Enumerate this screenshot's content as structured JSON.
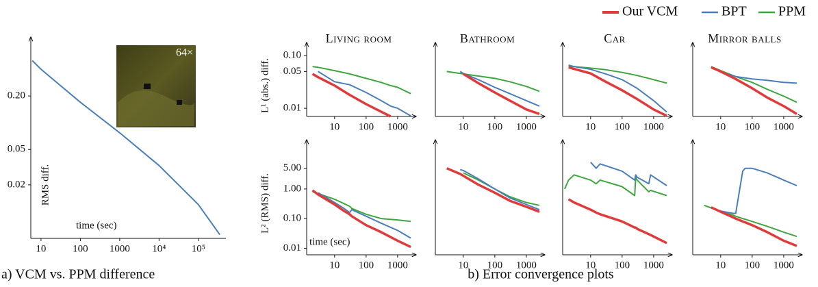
{
  "chart_data": [
    {
      "type": "line",
      "x_label": "time (sec)",
      "y_label": "RMS diff.",
      "inset_label": "64×",
      "caption": "a) VCM vs. PPM difference",
      "xscale": "log",
      "yscale": "log",
      "xlim": [
        5.5,
        500000
      ],
      "ylim": [
        0.005,
        0.8
      ],
      "xticks": [
        10,
        100,
        1000,
        {
          "value": 10000,
          "label": "10⁴"
        },
        {
          "value": 100000,
          "label": "10⁵"
        }
      ],
      "yticks": [
        {
          "value": 0.2,
          "label": "0.20"
        },
        0.05,
        0.02
      ],
      "x": [
        6,
        10,
        100,
        1000,
        10000,
        100000,
        350000
      ],
      "color": "#4a7ebb",
      "values": [
        0.5,
        0.4,
        0.17,
        0.077,
        0.033,
        0.012,
        0.0055
      ]
    },
    {
      "type": "line",
      "title": "Living room",
      "y_label": "L¹ (abs.) diff.",
      "caption": "b) Error convergence plots",
      "xscale": "log",
      "yscale": "log",
      "xlim": [
        1.3,
        2600
      ],
      "ylim": [
        0.007,
        0.14
      ],
      "xticks": [
        10,
        100,
        1000
      ],
      "yticks": [
        {
          "value": 0.1,
          "label": "0.10"
        },
        0.05,
        0.01
      ],
      "x": [
        2,
        3,
        10,
        30,
        100,
        300,
        600,
        1000,
        2600
      ],
      "series": [
        {
          "name": "Our VCM",
          "color": "#e03a3a",
          "values": [
            0.045,
            0.039,
            0.027,
            0.018,
            0.012,
            0.0086,
            0.007,
            null,
            null
          ]
        },
        {
          "name": "BPT",
          "color": "#4a7ebb",
          "values": [
            null,
            0.05,
            0.032,
            0.028,
            0.02,
            0.014,
            0.011,
            0.01,
            0.0072
          ]
        },
        {
          "name": "PPM",
          "color": "#3fa63f",
          "values": [
            0.062,
            0.06,
            0.052,
            0.045,
            0.037,
            0.031,
            0.027,
            0.025,
            0.019
          ]
        }
      ]
    },
    {
      "type": "line",
      "title": "Bathroom",
      "xscale": "log",
      "yscale": "log",
      "xlim": [
        1.3,
        2600
      ],
      "ylim": [
        0.007,
        0.14
      ],
      "xticks": [
        10,
        100,
        1000
      ],
      "x": [
        3,
        8,
        10,
        30,
        100,
        300,
        1000,
        2600
      ],
      "series": [
        {
          "color": "#e03a3a",
          "values": [
            null,
            null,
            0.045,
            0.03,
            0.02,
            0.014,
            0.0095,
            0.0078
          ]
        },
        {
          "color": "#4a7ebb",
          "values": [
            null,
            0.05,
            0.046,
            0.035,
            0.025,
            0.019,
            0.014,
            0.011
          ]
        },
        {
          "color": "#3fa63f",
          "values": [
            0.05,
            0.046,
            0.045,
            0.041,
            0.037,
            0.032,
            0.026,
            0.021
          ]
        }
      ]
    },
    {
      "type": "line",
      "title": "Car",
      "xscale": "log",
      "yscale": "log",
      "xlim": [
        1.3,
        2600
      ],
      "ylim": [
        0.007,
        0.14
      ],
      "xticks": [
        10,
        100,
        1000
      ],
      "x": [
        2,
        3,
        10,
        30,
        100,
        300,
        1000,
        2600
      ],
      "series": [
        {
          "color": "#e03a3a",
          "values": [
            0.06,
            0.056,
            0.046,
            0.032,
            0.022,
            0.015,
            0.0095,
            0.0072
          ]
        },
        {
          "color": "#4a7ebb",
          "values": [
            0.066,
            0.062,
            0.055,
            0.045,
            0.035,
            0.024,
            0.014,
            0.0085
          ]
        },
        {
          "color": "#3fa63f",
          "values": [
            0.063,
            0.062,
            0.058,
            0.054,
            0.048,
            0.042,
            0.035,
            0.03
          ]
        }
      ]
    },
    {
      "type": "line",
      "title": "Mirror balls",
      "xscale": "log",
      "yscale": "log",
      "xlim": [
        1.3,
        2600
      ],
      "ylim": [
        0.007,
        0.14
      ],
      "xticks": [
        10,
        100,
        1000
      ],
      "x": [
        5,
        10,
        30,
        100,
        300,
        1000,
        2600
      ],
      "series": [
        {
          "color": "#e03a3a",
          "values": [
            0.06,
            0.05,
            0.036,
            0.024,
            0.016,
            0.011,
            0.0078
          ]
        },
        {
          "color": "#4a7ebb",
          "values": [
            0.06,
            0.05,
            0.04,
            0.036,
            0.034,
            0.031,
            0.03
          ]
        },
        {
          "color": "#3fa63f",
          "values": [
            0.062,
            0.052,
            0.04,
            0.031,
            0.023,
            0.017,
            0.013
          ]
        }
      ]
    },
    {
      "type": "line",
      "y_label": "L² (RMS) diff.",
      "x_label": "time (sec)",
      "xscale": "log",
      "yscale": "log",
      "xlim": [
        1.3,
        2600
      ],
      "ylim": [
        0.006,
        30
      ],
      "xticks": [
        10,
        100,
        1000
      ],
      "yticks": [
        {
          "value": 5,
          "label": "5.00"
        },
        {
          "value": 1,
          "label": "1.00"
        },
        {
          "value": 0.1,
          "label": "0.10"
        },
        0.01
      ],
      "x": [
        2,
        3,
        10,
        20,
        30,
        35,
        100,
        300,
        1000,
        2600
      ],
      "series": [
        {
          "color": "#e03a3a",
          "values": [
            0.9,
            0.65,
            0.3,
            0.18,
            0.14,
            0.12,
            0.06,
            0.035,
            0.018,
            0.011
          ]
        },
        {
          "color": "#4a7ebb",
          "values": [
            null,
            0.75,
            0.35,
            0.22,
            0.16,
            0.2,
            0.12,
            0.07,
            0.04,
            0.022
          ]
        },
        {
          "color": "#3fa63f",
          "values": [
            0.8,
            0.7,
            0.45,
            0.32,
            0.26,
            0.22,
            0.14,
            0.1,
            0.09,
            0.08
          ]
        }
      ]
    },
    {
      "type": "line",
      "xscale": "log",
      "yscale": "log",
      "xlim": [
        1.3,
        2600
      ],
      "ylim": [
        0.006,
        30
      ],
      "xticks": [
        10,
        100,
        1000
      ],
      "x": [
        3,
        8,
        10,
        30,
        100,
        300,
        1000,
        2600
      ],
      "series": [
        {
          "color": "#e03a3a",
          "values": [
            5,
            3.2,
            2.8,
            1.4,
            0.75,
            0.4,
            0.25,
            0.17
          ]
        },
        {
          "color": "#4a7ebb",
          "values": [
            null,
            4.5,
            4.2,
            2.2,
            1.0,
            0.5,
            0.3,
            0.2
          ]
        },
        {
          "color": "#3fa63f",
          "values": [
            null,
            null,
            3.5,
            2.0,
            1.0,
            0.55,
            0.35,
            0.28
          ]
        }
      ]
    },
    {
      "type": "line",
      "xscale": "log",
      "yscale": "log",
      "xlim": [
        1.3,
        2600
      ],
      "ylim": [
        0.006,
        30
      ],
      "xticks": [
        10,
        100,
        1000
      ],
      "x": [
        1.5,
        2,
        3,
        10,
        15,
        20,
        100,
        250,
        270,
        300,
        700,
        800,
        2600
      ],
      "series": [
        {
          "color": "#e03a3a",
          "values": [
            null,
            0.45,
            0.35,
            0.2,
            0.16,
            0.14,
            0.08,
            0.05,
            0.05,
            0.045,
            0.03,
            0.028,
            0.015
          ]
        },
        {
          "color": "#4a7ebb",
          "values": [
            null,
            null,
            null,
            8,
            5,
            7,
            4,
            2,
            3,
            2.5,
            1.5,
            3,
            1.3
          ]
        },
        {
          "color": "#3fa63f",
          "values": [
            1,
            2,
            3,
            2,
            1.5,
            2,
            1.2,
            0.6,
            2.5,
            2,
            0.8,
            0.9,
            0.6
          ]
        }
      ]
    },
    {
      "type": "line",
      "xscale": "log",
      "yscale": "log",
      "xlim": [
        1.3,
        2600
      ],
      "ylim": [
        0.006,
        30
      ],
      "xticks": [
        10,
        100,
        1000
      ],
      "x": [
        3,
        5,
        10,
        25,
        30,
        50,
        60,
        100,
        300,
        1000,
        2600
      ],
      "series": [
        {
          "color": "#e03a3a",
          "values": [
            null,
            0.24,
            0.17,
            0.11,
            0.1,
            0.08,
            0.075,
            0.06,
            0.035,
            0.018,
            0.012
          ]
        },
        {
          "color": "#4a7ebb",
          "values": [
            null,
            0.23,
            0.18,
            0.15,
            0.15,
            4,
            5,
            5,
            3.5,
            2,
            1.3
          ]
        },
        {
          "color": "#3fa63f",
          "values": [
            0.28,
            0.23,
            0.18,
            0.13,
            0.12,
            0.1,
            0.095,
            0.08,
            0.055,
            0.035,
            0.025
          ]
        }
      ]
    }
  ]
}
